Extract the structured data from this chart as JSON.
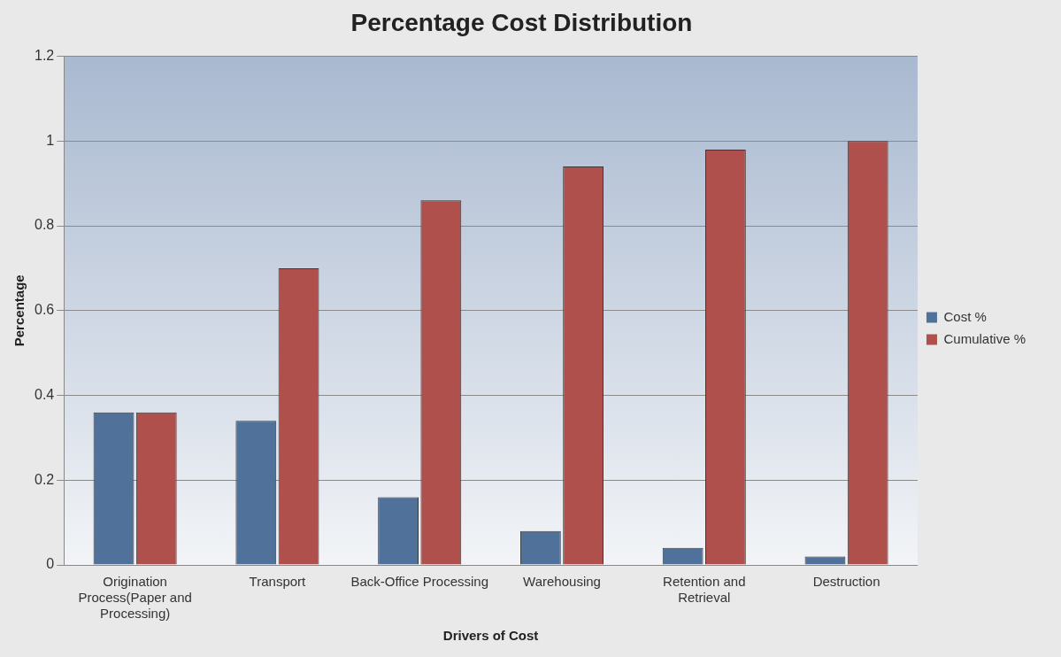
{
  "chart_data": {
    "type": "bar",
    "title": "Percentage Cost Distribution",
    "xlabel": "Drivers of Cost",
    "ylabel": "Percentage",
    "categories": [
      "Origination Process(Paper and Processing)",
      "Transport",
      "Back-Office Processing",
      "Warehousing",
      "Retention and Retrieval",
      "Destruction"
    ],
    "series": [
      {
        "name": "Cost %",
        "color": "#50719a",
        "values": [
          0.36,
          0.34,
          0.16,
          0.08,
          0.04,
          0.02
        ]
      },
      {
        "name": "Cumulative %",
        "color": "#b0504d",
        "values": [
          0.36,
          0.7,
          0.86,
          0.94,
          0.98,
          1.0
        ]
      }
    ],
    "ylim": [
      0,
      1.2
    ],
    "yticks": [
      0,
      0.2,
      0.4,
      0.6,
      0.8,
      1,
      1.2
    ],
    "grid": "y",
    "legend": "right"
  }
}
